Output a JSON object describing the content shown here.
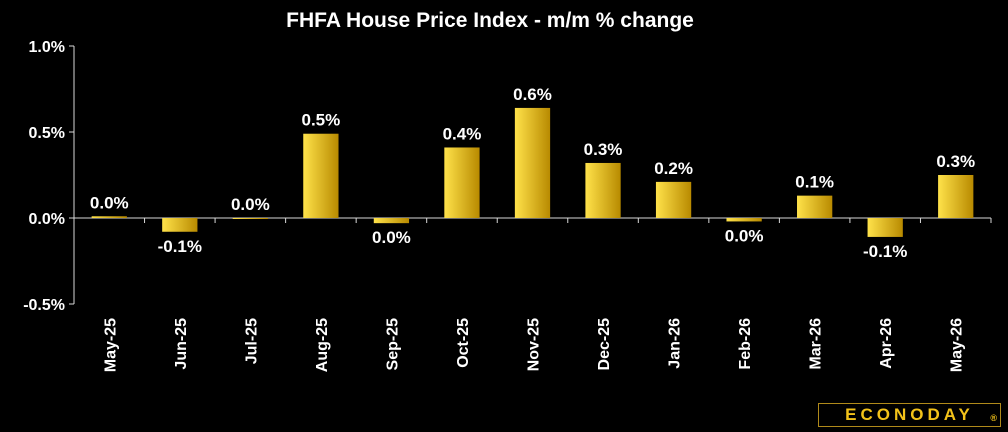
{
  "logo": {
    "text": "ECONODAY",
    "reg_mark": "®"
  },
  "colors": {
    "background": "#000000",
    "bar_light": "#ffe24a",
    "bar_dark": "#b88a00",
    "axis": "#d9d9d9"
  },
  "chart_data": {
    "type": "bar",
    "title": "FHFA House Price Index - m/m % change",
    "xlabel": "",
    "ylabel": "",
    "ylim": [
      -0.5,
      1.0
    ],
    "yticks": [
      -0.5,
      0.0,
      0.5,
      1.0
    ],
    "ytick_labels": [
      "-0.5%",
      "0.0%",
      "0.5%",
      "1.0%"
    ],
    "grid": false,
    "categories": [
      "May-25",
      "Jun-25",
      "Jul-25",
      "Aug-25",
      "Sep-25",
      "Oct-25",
      "Nov-25",
      "Dec-25",
      "Jan-26",
      "Feb-26",
      "Mar-26",
      "Apr-26",
      "May-26"
    ],
    "values": [
      0.01,
      -0.08,
      0.0,
      0.49,
      -0.03,
      0.41,
      0.64,
      0.32,
      0.21,
      -0.02,
      0.13,
      -0.11,
      0.25
    ],
    "data_labels": [
      "0.0%",
      "-0.1%",
      "0.0%",
      "0.5%",
      "0.0%",
      "0.4%",
      "0.6%",
      "0.3%",
      "0.2%",
      "0.0%",
      "0.1%",
      "-0.1%",
      "0.3%"
    ]
  }
}
